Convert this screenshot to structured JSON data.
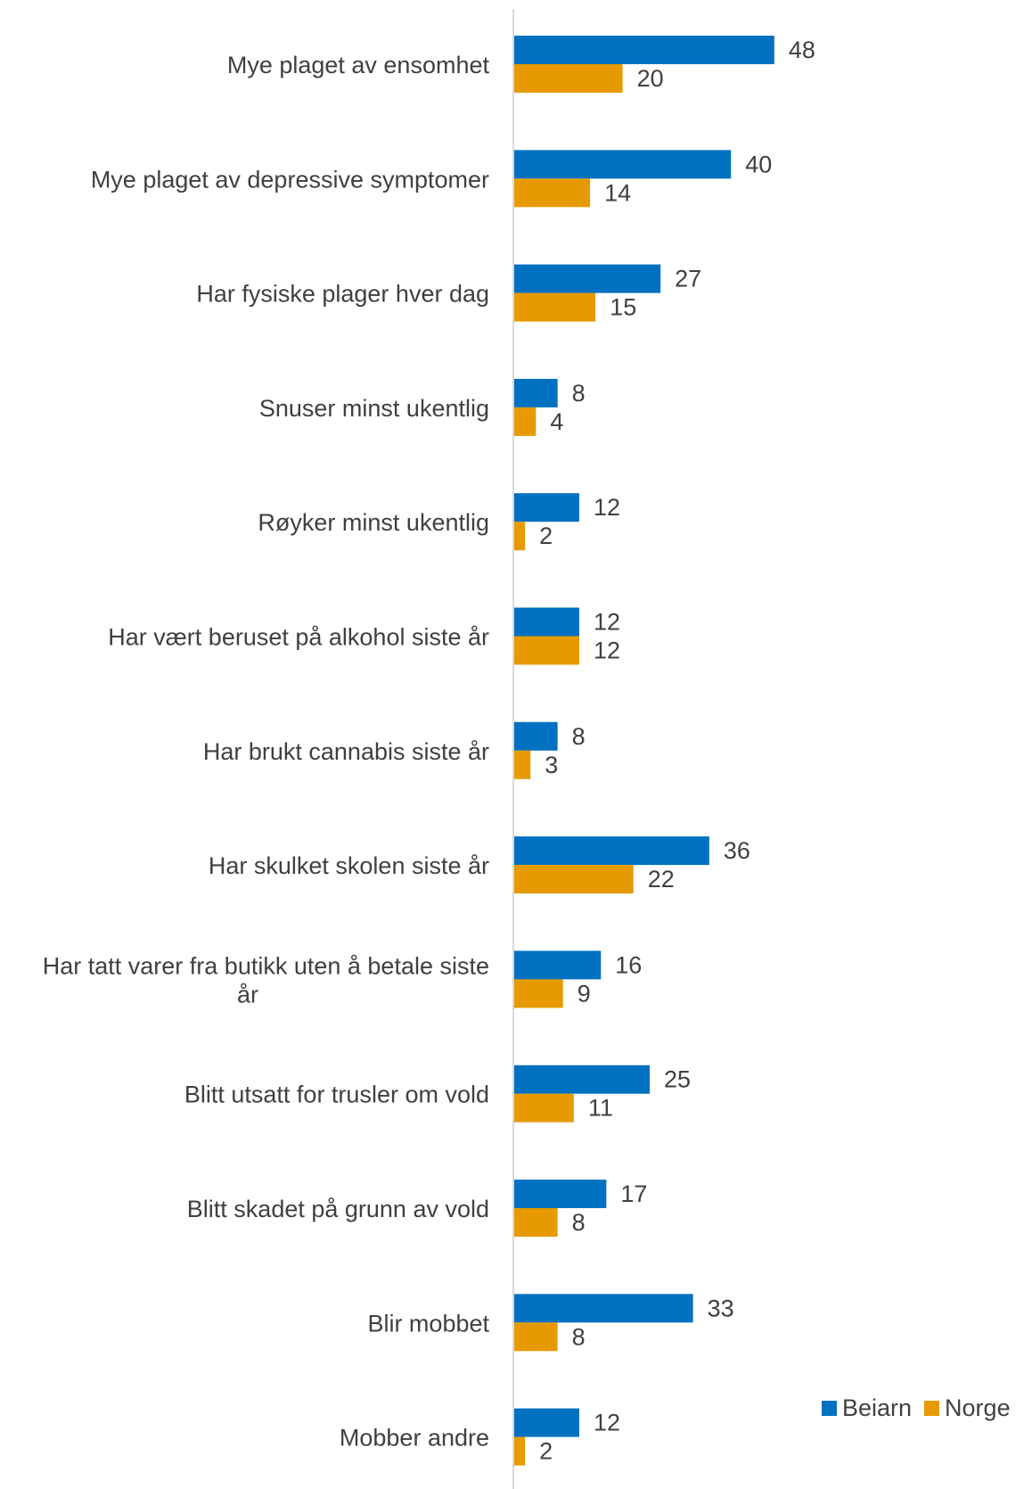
{
  "chart_data": {
    "type": "bar",
    "orientation": "horizontal",
    "categories": [
      "Mye plaget av ensomhet",
      "Mye plaget av depressive symptomer",
      "Har fysiske plager hver dag",
      "Snuser minst ukentlig",
      "Røyker minst ukentlig",
      "Har vært beruset på alkohol siste år",
      "Har brukt cannabis siste år",
      "Har skulket skolen siste år",
      "Har tatt varer fra butikk uten å betale siste år",
      "Blitt utsatt for trusler om vold",
      "Blitt skadet på grunn av vold",
      "Blir mobbet",
      "Mobber andre"
    ],
    "series": [
      {
        "name": "Beiarn",
        "color": "#0070C0",
        "values": [
          48,
          40,
          27,
          8,
          12,
          12,
          8,
          36,
          16,
          25,
          17,
          33,
          12
        ]
      },
      {
        "name": "Norge",
        "color": "#E69A00",
        "values": [
          20,
          14,
          15,
          4,
          2,
          12,
          3,
          22,
          9,
          11,
          8,
          8,
          2
        ]
      }
    ],
    "xlim": [
      0,
      95
    ],
    "grid": false,
    "legend": "bottom-right"
  }
}
